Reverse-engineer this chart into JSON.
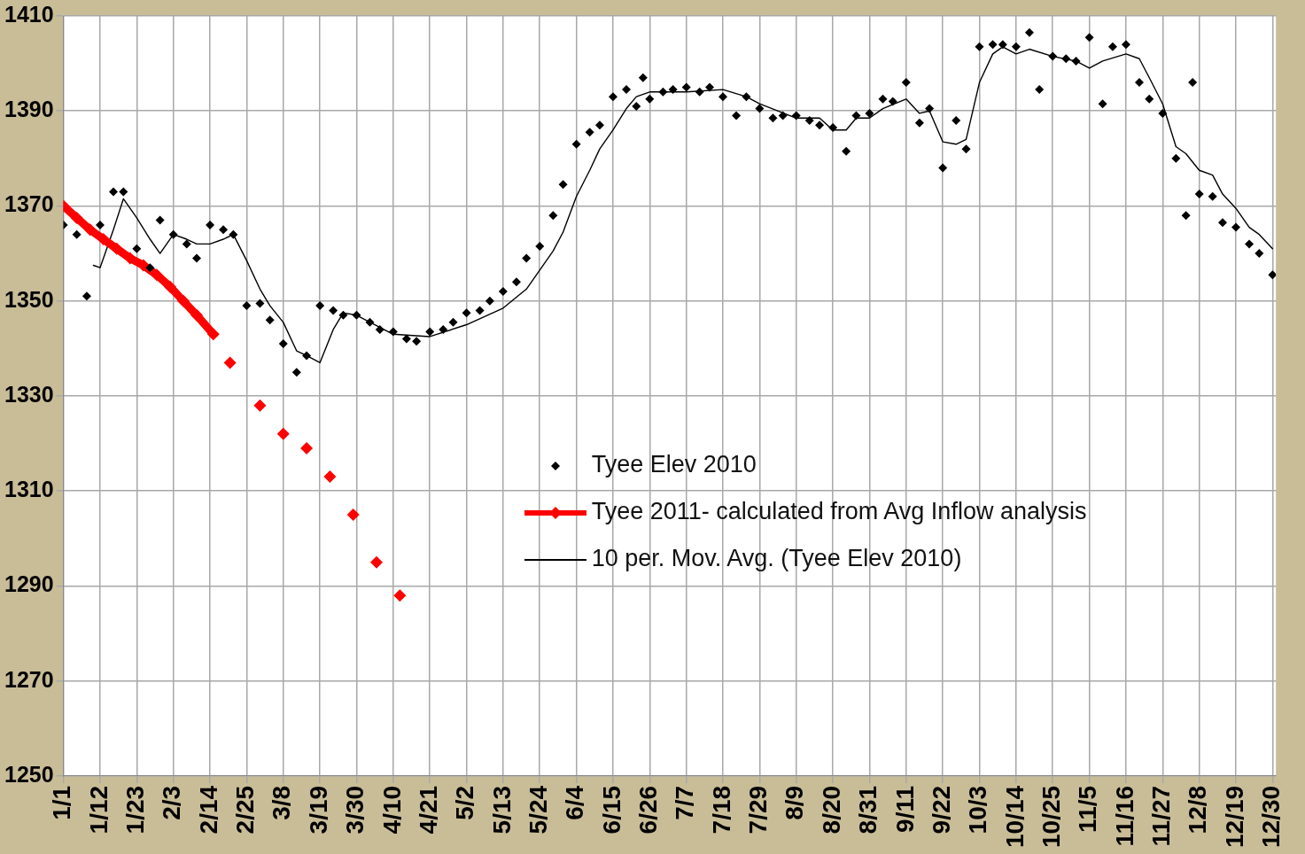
{
  "chart_data": {
    "type": "line",
    "xlim": [
      "--01-01",
      "--12-31"
    ],
    "xticks": [
      {
        "value": "--01-01",
        "label": "1/1"
      },
      {
        "value": "--01-12",
        "label": "1/12"
      },
      {
        "value": "--01-23",
        "label": "1/23"
      },
      {
        "value": "--02-03",
        "label": "2/3"
      },
      {
        "value": "--02-14",
        "label": "2/14"
      },
      {
        "value": "--02-25",
        "label": "2/25"
      },
      {
        "value": "--03-08",
        "label": "3/8"
      },
      {
        "value": "--03-19",
        "label": "3/19"
      },
      {
        "value": "--03-30",
        "label": "3/30"
      },
      {
        "value": "--04-10",
        "label": "4/10"
      },
      {
        "value": "--04-21",
        "label": "4/21"
      },
      {
        "value": "--05-02",
        "label": "5/2"
      },
      {
        "value": "--05-13",
        "label": "5/13"
      },
      {
        "value": "--05-24",
        "label": "5/24"
      },
      {
        "value": "--06-04",
        "label": "6/4"
      },
      {
        "value": "--06-15",
        "label": "6/15"
      },
      {
        "value": "--06-26",
        "label": "6/26"
      },
      {
        "value": "--07-07",
        "label": "7/7"
      },
      {
        "value": "--07-18",
        "label": "7/18"
      },
      {
        "value": "--07-29",
        "label": "7/29"
      },
      {
        "value": "--08-09",
        "label": "8/9"
      },
      {
        "value": "--08-20",
        "label": "8/20"
      },
      {
        "value": "--08-31",
        "label": "8/31"
      },
      {
        "value": "--09-11",
        "label": "9/11"
      },
      {
        "value": "--09-22",
        "label": "9/22"
      },
      {
        "value": "--10-03",
        "label": "10/3"
      },
      {
        "value": "--10-14",
        "label": "10/14"
      },
      {
        "value": "--10-25",
        "label": "10/25"
      },
      {
        "value": "--11-05",
        "label": "11/5"
      },
      {
        "value": "--11-16",
        "label": "11/16"
      },
      {
        "value": "--11-27",
        "label": "11/27"
      },
      {
        "value": "--12-08",
        "label": "12/8"
      },
      {
        "value": "--12-19",
        "label": "12/19"
      },
      {
        "value": "--12-30",
        "label": "12/30"
      }
    ],
    "ylim": [
      1250,
      1410
    ],
    "yticks": [
      1250,
      1270,
      1290,
      1310,
      1330,
      1350,
      1370,
      1390,
      1410
    ],
    "grid": true,
    "legend": "right",
    "series": [
      {
        "type": "scatter",
        "name": "Tyee Elev 2010",
        "color": "#000000",
        "marker": "diamond",
        "x": [
          "--01-01",
          "--01-05",
          "--01-08",
          "--01-12",
          "--01-16",
          "--01-19",
          "--01-23",
          "--01-27",
          "--01-30",
          "--02-03",
          "--02-07",
          "--02-10",
          "--02-14",
          "--02-18",
          "--02-21",
          "--02-25",
          "--03-01",
          "--03-04",
          "--03-08",
          "--03-12",
          "--03-15",
          "--03-19",
          "--03-23",
          "--03-26",
          "--03-30",
          "--04-03",
          "--04-06",
          "--04-10",
          "--04-14",
          "--04-17",
          "--04-21",
          "--04-25",
          "--04-28",
          "--05-02",
          "--05-06",
          "--05-09",
          "--05-13",
          "--05-17",
          "--05-20",
          "--05-24",
          "--05-28",
          "--05-31",
          "--06-04",
          "--06-08",
          "--06-11",
          "--06-15",
          "--06-19",
          "--06-22",
          "--06-24",
          "--06-26",
          "--06-30",
          "--07-03",
          "--07-07",
          "--07-11",
          "--07-14",
          "--07-18",
          "--07-22",
          "--07-25",
          "--07-29",
          "--08-02",
          "--08-05",
          "--08-09",
          "--08-13",
          "--08-16",
          "--08-20",
          "--08-24",
          "--08-27",
          "--08-31",
          "--09-04",
          "--09-07",
          "--09-11",
          "--09-15",
          "--09-18",
          "--09-22",
          "--09-26",
          "--09-29",
          "--10-03",
          "--10-07",
          "--10-10",
          "--10-14",
          "--10-18",
          "--10-21",
          "--10-25",
          "--10-29",
          "--11-01",
          "--11-05",
          "--11-09",
          "--11-12",
          "--11-16",
          "--11-20",
          "--11-23",
          "--11-27",
          "--12-01",
          "--12-04",
          "--12-06",
          "--12-08",
          "--12-12",
          "--12-15",
          "--12-19",
          "--12-23",
          "--12-26",
          "--12-30"
        ],
        "values": [
          1366,
          1364,
          1351,
          1366,
          1373,
          1373,
          1361,
          1357,
          1367,
          1364,
          1362,
          1359,
          1366,
          1365,
          1364,
          1349,
          1349.5,
          1346,
          1341,
          1335,
          1338.5,
          1349,
          1348,
          1347,
          1347,
          1345.5,
          1344,
          1343.5,
          1342,
          1341.5,
          1343.5,
          1344,
          1345.5,
          1347.5,
          1348,
          1350,
          1352,
          1354,
          1359,
          1361.5,
          1368,
          1374.5,
          1383,
          1385.5,
          1387,
          1393,
          1394.5,
          1391,
          1397,
          1392.5,
          1394,
          1394.5,
          1395,
          1394,
          1395,
          1393,
          1389,
          1393,
          1390.5,
          1388.5,
          1389,
          1389,
          1388,
          1387,
          1386.5,
          1381.5,
          1389,
          1389.5,
          1392.5,
          1392,
          1396,
          1387.5,
          1390.5,
          1378,
          1388,
          1382,
          1403.5,
          1404,
          1404,
          1403.5,
          1406.5,
          1394.5,
          1401.5,
          1401,
          1400.5,
          1405.5,
          1391.5,
          1403.5,
          1404,
          1396,
          1392.5,
          1389.5,
          1380,
          1368,
          1396,
          1372.5,
          1372,
          1366.5,
          1365.5,
          1362,
          1360,
          1355.5
        ]
      },
      {
        "type": "line",
        "name": "Tyee 2011- calculated from Avg Inflow analysis",
        "color": "#ff0000",
        "marker": "diamond",
        "x": [
          "--01-01",
          "--01-05",
          "--01-09",
          "--01-13",
          "--01-17",
          "--01-21",
          "--01-25",
          "--01-29",
          "--02-02",
          "--02-06",
          "--02-10",
          "--02-15",
          "--02-17",
          "--02-20",
          "--02-24",
          "--03-01",
          "--03-04",
          "--03-08",
          "--03-11",
          "--03-15",
          "--03-18",
          "--03-22",
          "--03-25",
          "--03-29",
          "--04-01",
          "--04-05",
          "--04-08",
          "--04-12"
        ],
        "values": [
          1370,
          1367.5,
          1365,
          1363,
          1361,
          1359,
          1357.5,
          1355.5,
          1353,
          1350,
          1347,
          1343,
          null,
          1337,
          null,
          1328,
          null,
          1322,
          null,
          1319,
          null,
          1313,
          null,
          1305,
          null,
          1295,
          null,
          1288
        ]
      },
      {
        "type": "line",
        "name": "10 per. Mov. Avg. (Tyee Elev 2010)",
        "color": "#000000",
        "marker": "none",
        "x": [
          "--01-10",
          "--01-12",
          "--01-16",
          "--01-19",
          "--01-23",
          "--01-27",
          "--01-30",
          "--02-03",
          "--02-07",
          "--02-10",
          "--02-14",
          "--02-18",
          "--02-21",
          "--02-25",
          "--03-01",
          "--03-04",
          "--03-08",
          "--03-12",
          "--03-15",
          "--03-19",
          "--03-23",
          "--03-26",
          "--03-30",
          "--04-10",
          "--04-21",
          "--05-02",
          "--05-13",
          "--05-20",
          "--05-24",
          "--05-28",
          "--05-31",
          "--06-04",
          "--06-08",
          "--06-11",
          "--06-15",
          "--06-19",
          "--06-22",
          "--06-26",
          "--07-07",
          "--07-18",
          "--07-25",
          "--07-29",
          "--08-09",
          "--08-16",
          "--08-20",
          "--08-24",
          "--08-27",
          "--08-31",
          "--09-04",
          "--09-11",
          "--09-15",
          "--09-18",
          "--09-22",
          "--09-26",
          "--09-29",
          "--10-03",
          "--10-07",
          "--10-10",
          "--10-14",
          "--10-18",
          "--10-25",
          "--11-01",
          "--11-05",
          "--11-09",
          "--11-16",
          "--11-20",
          "--11-23",
          "--11-27",
          "--12-01",
          "--12-04",
          "--12-08",
          "--12-12",
          "--12-15",
          "--12-19",
          "--12-23",
          "--12-26",
          "--12-30"
        ],
        "values": [
          1357.5,
          1357,
          1365,
          1371.5,
          1367.5,
          1363,
          1360,
          1364,
          1363,
          1362,
          1362,
          1363,
          1364,
          1358.5,
          1352.5,
          1349,
          1345.5,
          1339.5,
          1338.5,
          1337,
          1344,
          1347.5,
          1347,
          1343,
          1342.5,
          1345,
          1348.5,
          1352.5,
          1356.5,
          1360.5,
          1364.5,
          1372,
          1377.5,
          1382,
          1386,
          1390.5,
          1393,
          1394,
          1394,
          1394.5,
          1393,
          1391.5,
          1388.5,
          1388.5,
          1386,
          1386,
          1388.5,
          1388.5,
          1390.5,
          1392.5,
          1389.5,
          1390,
          1383.5,
          1383,
          1384,
          1396,
          1402,
          1403.5,
          1402,
          1403,
          1401.5,
          1400.5,
          1399,
          1400.5,
          1402,
          1401,
          1397,
          1391.5,
          1382.5,
          1381,
          1377.5,
          1376.5,
          1372.5,
          1369.5,
          1365.5,
          1364,
          1361
        ]
      }
    ]
  }
}
